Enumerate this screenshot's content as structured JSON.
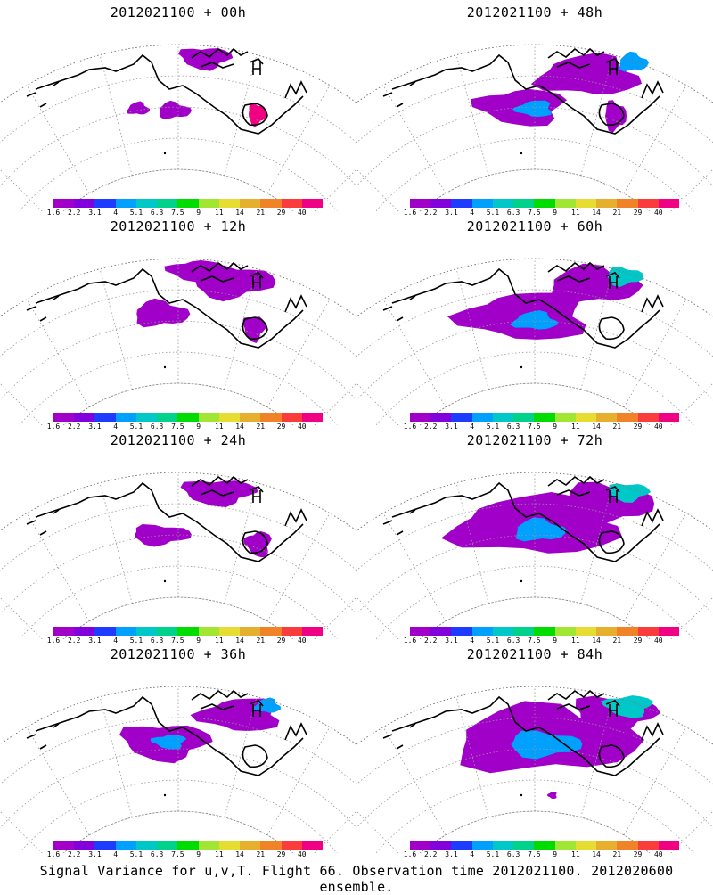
{
  "panels": [
    {
      "title": "2012021100 + 00h",
      "stage": 0
    },
    {
      "title": "2012021100 + 48h",
      "stage": 4
    },
    {
      "title": "2012021100 + 12h",
      "stage": 1
    },
    {
      "title": "2012021100 + 60h",
      "stage": 5
    },
    {
      "title": "2012021100 + 24h",
      "stage": 2
    },
    {
      "title": "2012021100 + 72h",
      "stage": 6
    },
    {
      "title": "2012021100 + 36h",
      "stage": 3
    },
    {
      "title": "2012021100 + 84h",
      "stage": 7
    }
  ],
  "colorbar": {
    "labels": [
      "1.6",
      "2.2",
      "3.1",
      "4",
      "5.1",
      "6.3",
      "7.5",
      "9",
      "11",
      "14",
      "21",
      "29",
      "40"
    ],
    "colors": [
      "#a000c8",
      "#8200dc",
      "#1e3cff",
      "#00a0ff",
      "#00c8c8",
      "#00d28c",
      "#00dc00",
      "#a0e632",
      "#e6dc32",
      "#e6af2d",
      "#f08228",
      "#fa3c3c",
      "#f00082"
    ]
  },
  "caption": "Signal Variance for u,v,T. Flight 66. Observation time 2012021100. 2012020600 ensemble."
}
